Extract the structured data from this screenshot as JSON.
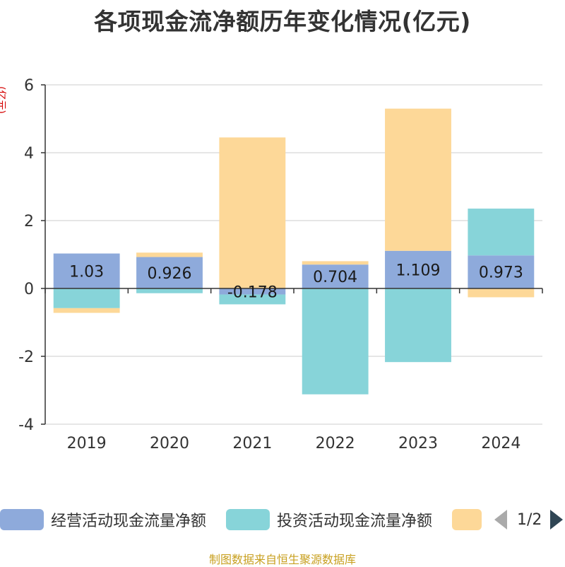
{
  "title": "各项现金流净额历年变化情况(亿元)",
  "source": "制图数据来自恒生聚源数据库",
  "chart_data": {
    "type": "bar",
    "stacked": true,
    "ylabel": "(亿元)",
    "ylim": [
      -4,
      6
    ],
    "yticks": [
      -4,
      -2,
      0,
      2,
      4,
      6
    ],
    "categories": [
      "2019",
      "2020",
      "2021",
      "2022",
      "2023",
      "2024"
    ],
    "grid": true,
    "legend_position": "bottom",
    "series": [
      {
        "name": "经营活动现金流量净额",
        "color": "#8eaadb",
        "values": [
          1.03,
          0.926,
          -0.178,
          0.704,
          1.109,
          0.973
        ],
        "labels": [
          "1.03",
          "0.926",
          "-0.178",
          "0.704",
          "1.109",
          "0.973"
        ]
      },
      {
        "name": "投资活动现金流量净额",
        "color": "#87d4d9",
        "values": [
          -0.58,
          -0.14,
          -0.29,
          -3.12,
          -2.17,
          1.38
        ]
      },
      {
        "name": "",
        "color": "#fdd898",
        "values": [
          -0.14,
          0.13,
          4.45,
          0.1,
          4.19,
          -0.26
        ]
      }
    ]
  },
  "legend": {
    "page_text": "1/2"
  }
}
